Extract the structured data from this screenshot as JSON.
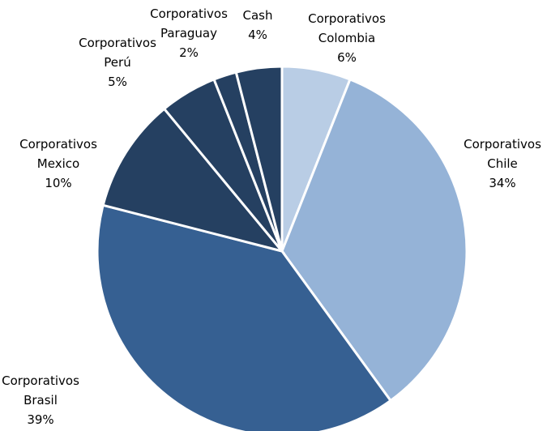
{
  "chart_data": {
    "type": "pie",
    "categories": [
      "Corporativos Colombia",
      "Corporativos Chile",
      "Corporativos Brasil",
      "Corporativos Mexico",
      "Corporativos Perú",
      "Corporativos Paraguay",
      "Cash"
    ],
    "values": [
      6,
      34,
      39,
      10,
      5,
      2,
      4
    ],
    "value_labels": [
      "6%",
      "34%",
      "39%",
      "10%",
      "5%",
      "2%",
      "4%"
    ],
    "colors": [
      "#b9cde5",
      "#95b3d7",
      "#366092",
      "#254061",
      "#254061",
      "#254061",
      "#254061"
    ]
  }
}
